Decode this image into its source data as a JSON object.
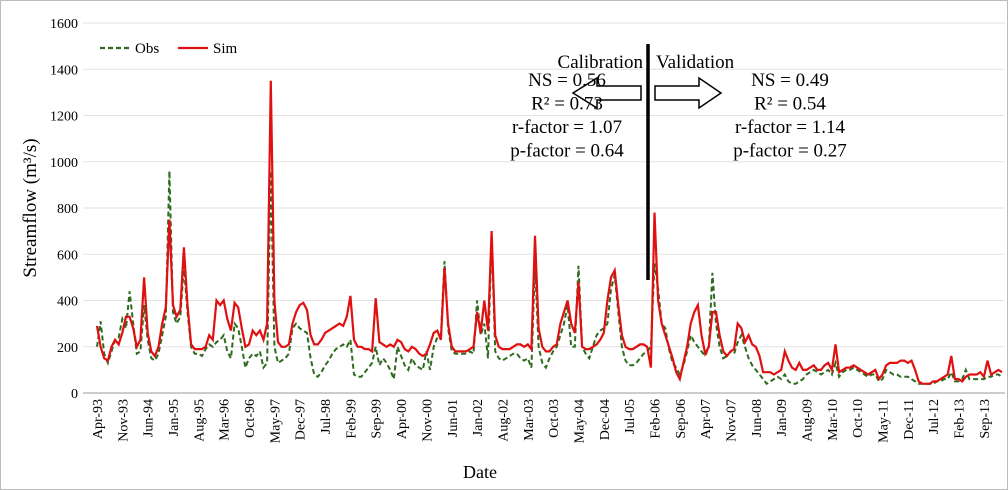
{
  "chart_data": {
    "type": "line",
    "x_label": "Date",
    "y_label": "Streamflow (m³/s)",
    "categories": [
      "Apr-93",
      null,
      null,
      null,
      null,
      null,
      null,
      "Nov-93",
      null,
      null,
      null,
      null,
      null,
      null,
      "Jun-94",
      null,
      null,
      null,
      null,
      null,
      null,
      "Jan-95",
      null,
      null,
      null,
      null,
      null,
      null,
      "Aug-95",
      null,
      null,
      null,
      null,
      null,
      null,
      "Mar-96",
      null,
      null,
      null,
      null,
      null,
      null,
      "Oct-96",
      null,
      null,
      null,
      null,
      null,
      null,
      "May-97",
      null,
      null,
      null,
      null,
      null,
      null,
      "Dec-97",
      null,
      null,
      null,
      null,
      null,
      null,
      "Jul-98",
      null,
      null,
      null,
      null,
      null,
      null,
      "Feb-99",
      null,
      null,
      null,
      null,
      null,
      null,
      "Sep-99",
      null,
      null,
      null,
      null,
      null,
      null,
      "Apr-00",
      null,
      null,
      null,
      null,
      null,
      null,
      "Nov-00",
      null,
      null,
      null,
      null,
      null,
      null,
      "Jun-01",
      null,
      null,
      null,
      null,
      null,
      null,
      "Jan-02",
      null,
      null,
      null,
      null,
      null,
      null,
      "Aug-02",
      null,
      null,
      null,
      null,
      null,
      null,
      "Mar-03",
      null,
      null,
      null,
      null,
      null,
      null,
      "Oct-03",
      null,
      null,
      null,
      null,
      null,
      null,
      "May-04",
      null,
      null,
      null,
      null,
      null,
      null,
      "Dec-04",
      null,
      null,
      null,
      null,
      null,
      null,
      "Jul-05",
      null,
      null,
      null,
      null,
      null,
      null,
      "Feb-06",
      null,
      null,
      null,
      null,
      null,
      null,
      "Sep-06",
      null,
      null,
      null,
      null,
      null,
      null,
      "Apr-07",
      null,
      null,
      null,
      null,
      null,
      null,
      "Nov-07",
      null,
      null,
      null,
      null,
      null,
      null,
      "Jun-08",
      null,
      null,
      null,
      null,
      null,
      null,
      "Jan-09",
      null,
      null,
      null,
      null,
      null,
      null,
      "Aug-09",
      null,
      null,
      null,
      null,
      null,
      null,
      "Mar-10",
      null,
      null,
      null,
      null,
      null,
      null,
      "Oct-10",
      null,
      null,
      null,
      null,
      null,
      null,
      "May-11",
      null,
      null,
      null,
      null,
      null,
      null,
      "Dec-11",
      null,
      null,
      null,
      null,
      null,
      null,
      "Jul-12",
      null,
      null,
      null,
      null,
      null,
      null,
      "Feb-13",
      null,
      null,
      null,
      null,
      null,
      null,
      "Sep-13",
      null,
      null,
      null,
      null,
      null
    ],
    "series": [
      {
        "name": "Obs",
        "color": "#2e6b1f",
        "dashed": true,
        "values": [
          200,
          310,
          170,
          130,
          180,
          230,
          240,
          320,
          280,
          440,
          300,
          170,
          180,
          380,
          230,
          150,
          140,
          170,
          250,
          330,
          960,
          350,
          300,
          330,
          550,
          350,
          200,
          170,
          170,
          160,
          190,
          210,
          200,
          220,
          230,
          250,
          180,
          150,
          300,
          280,
          200,
          110,
          150,
          170,
          160,
          180,
          110,
          130,
          960,
          200,
          130,
          140,
          150,
          170,
          280,
          300,
          280,
          270,
          260,
          150,
          80,
          70,
          90,
          120,
          140,
          170,
          190,
          200,
          210,
          200,
          230,
          80,
          70,
          70,
          90,
          110,
          130,
          200,
          120,
          150,
          130,
          100,
          60,
          200,
          160,
          120,
          100,
          150,
          120,
          110,
          100,
          180,
          100,
          200,
          240,
          250,
          570,
          280,
          180,
          170,
          170,
          170,
          170,
          180,
          170,
          400,
          250,
          300,
          150,
          680,
          180,
          150,
          140,
          150,
          160,
          170,
          170,
          150,
          140,
          150,
          110,
          560,
          200,
          130,
          110,
          150,
          180,
          200,
          250,
          300,
          380,
          200,
          200,
          550,
          200,
          170,
          150,
          200,
          250,
          270,
          280,
          300,
          450,
          510,
          350,
          200,
          140,
          120,
          120,
          130,
          150,
          170,
          180,
          200,
          560,
          450,
          300,
          280,
          190,
          130,
          110,
          80,
          120,
          180,
          250,
          220,
          200,
          180,
          160,
          200,
          520,
          300,
          200,
          150,
          160,
          180,
          170,
          220,
          250,
          200,
          150,
          120,
          100,
          80,
          60,
          40,
          50,
          60,
          70,
          60,
          80,
          50,
          40,
          40,
          50,
          60,
          80,
          90,
          100,
          90,
          80,
          90,
          100,
          80,
          130,
          70,
          90,
          100,
          100,
          110,
          100,
          90,
          80,
          70,
          80,
          80,
          50,
          60,
          100,
          90,
          80,
          80,
          70,
          70,
          70,
          60,
          50,
          40,
          40,
          40,
          40,
          40,
          50,
          50,
          60,
          60,
          90,
          50,
          50,
          60,
          100,
          60,
          60,
          60,
          60,
          60,
          70,
          70,
          80,
          80,
          70
        ]
      },
      {
        "name": "Sim",
        "color": "#e01010",
        "dashed": false,
        "values": [
          290,
          200,
          150,
          140,
          200,
          230,
          210,
          260,
          330,
          330,
          280,
          200,
          230,
          500,
          260,
          180,
          160,
          200,
          300,
          370,
          750,
          380,
          330,
          360,
          630,
          380,
          210,
          190,
          190,
          190,
          200,
          250,
          230,
          400,
          380,
          400,
          320,
          270,
          390,
          370,
          280,
          200,
          210,
          270,
          250,
          270,
          230,
          300,
          1350,
          400,
          220,
          200,
          200,
          210,
          300,
          350,
          380,
          390,
          360,
          250,
          210,
          210,
          230,
          260,
          270,
          280,
          290,
          300,
          290,
          330,
          420,
          230,
          200,
          200,
          190,
          190,
          180,
          410,
          220,
          210,
          200,
          210,
          200,
          230,
          220,
          190,
          180,
          200,
          190,
          170,
          160,
          170,
          210,
          260,
          270,
          230,
          540,
          300,
          200,
          180,
          180,
          180,
          180,
          190,
          200,
          350,
          260,
          400,
          270,
          700,
          250,
          200,
          190,
          190,
          190,
          200,
          210,
          210,
          200,
          210,
          190,
          680,
          280,
          200,
          180,
          180,
          200,
          210,
          300,
          350,
          400,
          300,
          260,
          480,
          200,
          190,
          190,
          200,
          210,
          230,
          260,
          400,
          500,
          530,
          380,
          250,
          200,
          190,
          190,
          200,
          210,
          210,
          200,
          110,
          780,
          400,
          300,
          250,
          200,
          150,
          90,
          60,
          130,
          200,
          300,
          350,
          380,
          250,
          170,
          200,
          350,
          350,
          250,
          180,
          160,
          180,
          190,
          300,
          280,
          220,
          250,
          210,
          200,
          160,
          90,
          90,
          90,
          80,
          90,
          100,
          180,
          140,
          110,
          100,
          130,
          100,
          100,
          110,
          120,
          100,
          100,
          120,
          130,
          100,
          210,
          90,
          100,
          110,
          110,
          120,
          110,
          100,
          90,
          80,
          90,
          100,
          60,
          80,
          120,
          130,
          130,
          130,
          140,
          140,
          130,
          140,
          100,
          50,
          40,
          40,
          40,
          50,
          50,
          60,
          70,
          80,
          160,
          60,
          60,
          50,
          70,
          80,
          80,
          80,
          90,
          70,
          140,
          80,
          90,
          100,
          90
        ]
      }
    ],
    "ylim": [
      0,
      1600
    ],
    "yticks": [
      0,
      200,
      400,
      600,
      800,
      1000,
      1200,
      1400,
      1600
    ],
    "grid": true,
    "legend": "upper left",
    "annotations": {
      "calibration": "Calibration",
      "validation": "Validation",
      "calibration_stats": [
        "NS = 0.56",
        "R² = 0.73",
        "r-factor = 1.07",
        "p-factor = 0.64"
      ],
      "validation_stats": [
        "NS = 0.49",
        "R² = 0.54",
        "r-factor = 1.14",
        "p-factor = 0.27"
      ]
    }
  }
}
